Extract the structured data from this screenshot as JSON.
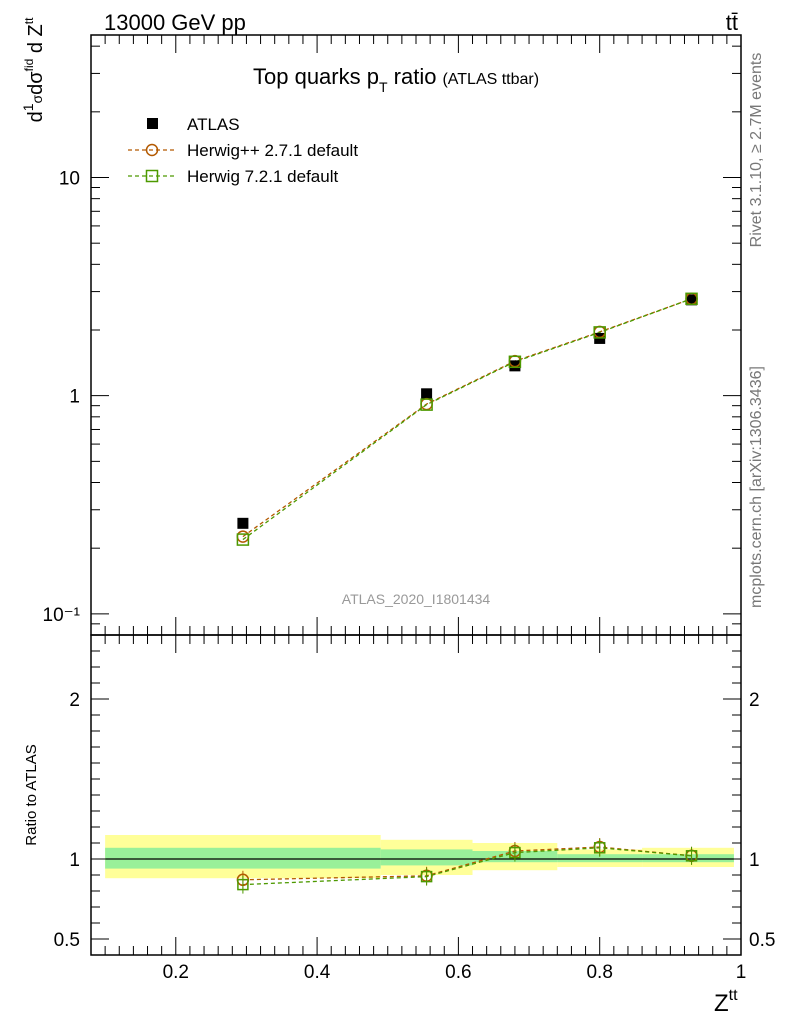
{
  "header": {
    "left": "13000 GeV pp",
    "right": "tt̄"
  },
  "side_labels": {
    "rivet": "Rivet 3.1.10, ≥ 2.7M events",
    "mcplots": "mcplots.cern.ch [arXiv:1306.3436]"
  },
  "watermark": "ATLAS_2020_I1801434",
  "title": {
    "main_prefix": "Top quarks p",
    "main_sub": "T",
    "main_suffix": " ratio",
    "small": "(ATLAS ttbar)"
  },
  "axes": {
    "top_ylabel": "d¹⁄σ dσ^fid ⁄ d Z^tt",
    "bottom_ylabel": "Ratio to ATLAS",
    "xlabel_main": "Z",
    "xlabel_sup": "tt"
  },
  "colors": {
    "data": "#000000",
    "herwigpp": "#b35900",
    "herwig7": "#4d9900",
    "band_inner": "#99f099",
    "band_outer": "#ffff99"
  },
  "chart_data": [
    {
      "type": "scatter",
      "panel": "main",
      "yscale": "log",
      "xlim": [
        0.08,
        1.0
      ],
      "ylim": [
        0.08,
        45
      ],
      "x_ticks": [
        0.2,
        0.4,
        0.6,
        0.8,
        1
      ],
      "x_tick_labels": [
        "0.2",
        "0.4",
        "0.6",
        "0.8",
        "1"
      ],
      "y_ticks": [
        0.1,
        1,
        10
      ],
      "y_tick_labels": [
        "10⁻¹",
        "1",
        "10"
      ],
      "legend": "top-left",
      "series": [
        {
          "name": "ATLAS",
          "marker": "filled-square",
          "x": [
            0.295,
            0.555,
            0.68,
            0.8,
            0.93
          ],
          "y": [
            0.26,
            1.02,
            1.37,
            1.83,
            2.75
          ]
        },
        {
          "name": "Herwig++ 2.7.1 default",
          "marker": "open-circle",
          "x": [
            0.295,
            0.555,
            0.68,
            0.8,
            0.93
          ],
          "y": [
            0.226,
            0.915,
            1.44,
            1.96,
            2.78
          ]
        },
        {
          "name": "Herwig 7.2.1 default",
          "marker": "open-square",
          "x": [
            0.295,
            0.555,
            0.68,
            0.8,
            0.93
          ],
          "y": [
            0.219,
            0.91,
            1.43,
            1.95,
            2.78
          ]
        }
      ]
    },
    {
      "type": "scatter",
      "panel": "ratio",
      "xlim": [
        0.08,
        1.0
      ],
      "ylim": [
        0.4,
        2.4
      ],
      "y_ticks": [
        0.5,
        1,
        2
      ],
      "y_tick_labels": [
        "0.5",
        "1",
        "2"
      ],
      "bands": [
        {
          "x0": 0.1,
          "x1": 0.49,
          "inner": [
            0.94,
            1.07
          ],
          "outer": [
            0.88,
            1.15
          ]
        },
        {
          "x0": 0.49,
          "x1": 0.62,
          "inner": [
            0.96,
            1.06
          ],
          "outer": [
            0.9,
            1.12
          ]
        },
        {
          "x0": 0.62,
          "x1": 0.74,
          "inner": [
            0.98,
            1.05
          ],
          "outer": [
            0.93,
            1.1
          ]
        },
        {
          "x0": 0.74,
          "x1": 0.86,
          "inner": [
            0.98,
            1.03
          ],
          "outer": [
            0.95,
            1.06
          ]
        },
        {
          "x0": 0.86,
          "x1": 0.99,
          "inner": [
            0.98,
            1.03
          ],
          "outer": [
            0.95,
            1.07
          ]
        }
      ],
      "series": [
        {
          "name": "Herwig++ 2.7.1 default",
          "x": [
            0.295,
            0.555,
            0.68,
            0.8,
            0.93
          ],
          "y": [
            0.87,
            0.895,
            1.05,
            1.075,
            1.02
          ]
        },
        {
          "name": "Herwig 7.2.1 default",
          "x": [
            0.295,
            0.555,
            0.68,
            0.8,
            0.93
          ],
          "y": [
            0.84,
            0.89,
            1.04,
            1.07,
            1.02
          ]
        }
      ]
    }
  ]
}
